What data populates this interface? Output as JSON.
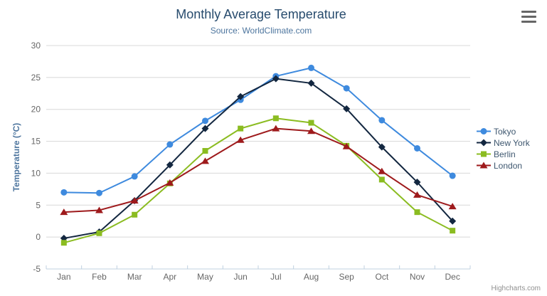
{
  "chart_data": {
    "type": "line",
    "title": "Monthly Average Temperature",
    "subtitle": "Source: WorldClimate.com",
    "xlabel": "",
    "ylabel": "Temperature (°C)",
    "ylim": [
      -5,
      30
    ],
    "yticks": [
      -5,
      0,
      5,
      10,
      15,
      20,
      25,
      30
    ],
    "categories": [
      "Jan",
      "Feb",
      "Mar",
      "Apr",
      "May",
      "Jun",
      "Jul",
      "Aug",
      "Sep",
      "Oct",
      "Nov",
      "Dec"
    ],
    "grid": true,
    "legend_position": "right-middle",
    "series": [
      {
        "name": "Tokyo",
        "color": "#3e8ade",
        "marker": "circle",
        "values": [
          7.0,
          6.9,
          9.5,
          14.5,
          18.2,
          21.5,
          25.2,
          26.5,
          23.3,
          18.3,
          13.9,
          9.6
        ]
      },
      {
        "name": "New York",
        "color": "#132740",
        "marker": "diamond",
        "values": [
          -0.2,
          0.8,
          5.7,
          11.3,
          17.0,
          22.0,
          24.8,
          24.1,
          20.1,
          14.1,
          8.6,
          2.5
        ]
      },
      {
        "name": "Berlin",
        "color": "#8bbc21",
        "marker": "square",
        "values": [
          -0.9,
          0.6,
          3.5,
          8.4,
          13.5,
          17.0,
          18.6,
          17.9,
          14.3,
          9.0,
          3.9,
          1.0
        ]
      },
      {
        "name": "London",
        "color": "#9e1a1c",
        "marker": "triangle",
        "values": [
          3.9,
          4.2,
          5.7,
          8.5,
          11.9,
          15.2,
          17.0,
          16.6,
          14.2,
          10.3,
          6.6,
          4.8
        ]
      }
    ]
  },
  "credits": {
    "label": "Highcharts.com"
  },
  "colors": {
    "title": "#274b6d",
    "subtitle": "#4d759e",
    "axis_label": "#666666",
    "grid_line": "#d8d8d8",
    "axis_line": "#c0d0e0",
    "legend_text": "#3e576f",
    "credits_text": "#909090",
    "menu_icon": "#666666"
  }
}
